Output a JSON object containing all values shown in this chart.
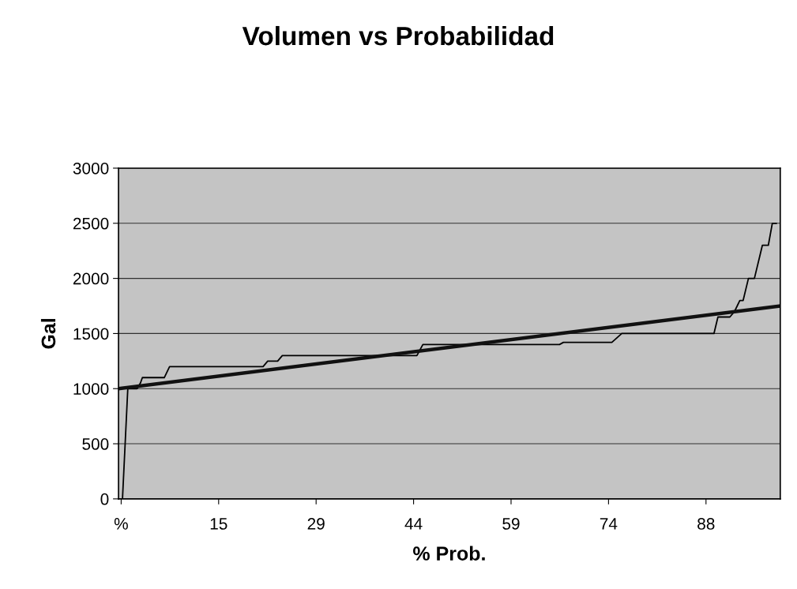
{
  "chart_data": {
    "type": "line",
    "title": "Volumen vs Probabilidad",
    "xlabel": "% Prob.",
    "ylabel": "Gal",
    "xlim": [
      -0.4,
      99.4
    ],
    "ylim": [
      0,
      3000
    ],
    "xticks": [
      {
        "value": 0,
        "label": "%"
      },
      {
        "value": 14.7,
        "label": "15"
      },
      {
        "value": 29.4,
        "label": "29"
      },
      {
        "value": 44.1,
        "label": "44"
      },
      {
        "value": 58.8,
        "label": "59"
      },
      {
        "value": 73.5,
        "label": "74"
      },
      {
        "value": 88.2,
        "label": "88"
      }
    ],
    "yticks": [
      0,
      500,
      1000,
      1500,
      2000,
      2500,
      3000
    ],
    "grid": "y",
    "marker": "none",
    "line_style": "solid",
    "series": [
      {
        "color": "#000000",
        "x": [
          0.2,
          1.0,
          2.4,
          2.9,
          3.2,
          6.5,
          7.3,
          21.4,
          22.1,
          23.6,
          24.3,
          44.6,
          45.5,
          66.1,
          66.7,
          74.0,
          75.5,
          89.4,
          90.0,
          91.8,
          92.5,
          93.3,
          93.8,
          94.6,
          95.5,
          96.3,
          96.7,
          97.6,
          98.2,
          98.8
        ],
        "values": [
          0,
          1000,
          1000,
          1050,
          1100,
          1100,
          1200,
          1200,
          1250,
          1250,
          1300,
          1300,
          1400,
          1400,
          1420,
          1420,
          1500,
          1500,
          1650,
          1650,
          1700,
          1800,
          1800,
          2000,
          2000,
          2200,
          2300,
          2300,
          2500,
          2500
        ]
      },
      {
        "color": "#111111",
        "x": [
          -0.4,
          99.4
        ],
        "values": [
          1000,
          1750
        ]
      }
    ]
  }
}
